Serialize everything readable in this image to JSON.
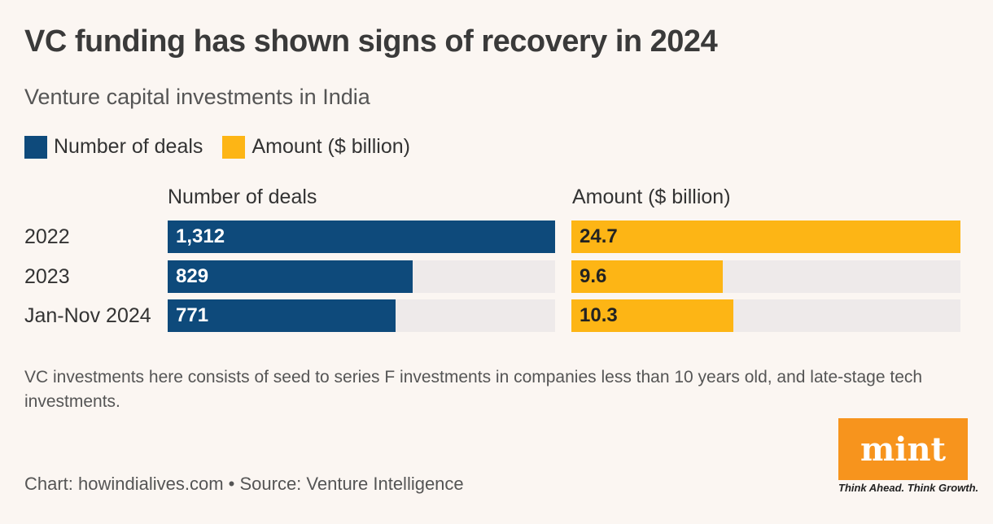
{
  "title": "VC funding has shown signs of recovery in 2024",
  "subtitle": "Venture capital investments in India",
  "colors": {
    "deals": "#0e4a7b",
    "amount": "#fdb515",
    "track": "#eeeaea"
  },
  "legend": [
    {
      "label": "Number of deals",
      "color": "#0e4a7b"
    },
    {
      "label": "Amount ($ billion)",
      "color": "#fdb515"
    }
  ],
  "chart_data": {
    "type": "bar",
    "orientation": "horizontal",
    "categories": [
      "2022",
      "2023",
      "Jan-Nov 2024"
    ],
    "series": [
      {
        "name": "Number of deals",
        "values": [
          1312,
          829,
          771
        ],
        "labels": [
          "1,312",
          "829",
          "771"
        ],
        "max": 1312
      },
      {
        "name": "Amount ($ billion)",
        "values": [
          24.7,
          9.6,
          10.3
        ],
        "labels": [
          "24.7",
          "9.6",
          "10.3"
        ],
        "max": 24.7
      }
    ]
  },
  "note": "VC investments here consists of seed to series F investments in companies less than 10 years old, and late-stage tech investments.",
  "source": "Chart: howindialives.com • Source: Venture Intelligence",
  "logo": {
    "text": "mint",
    "tagline": "Think Ahead. Think Growth."
  }
}
